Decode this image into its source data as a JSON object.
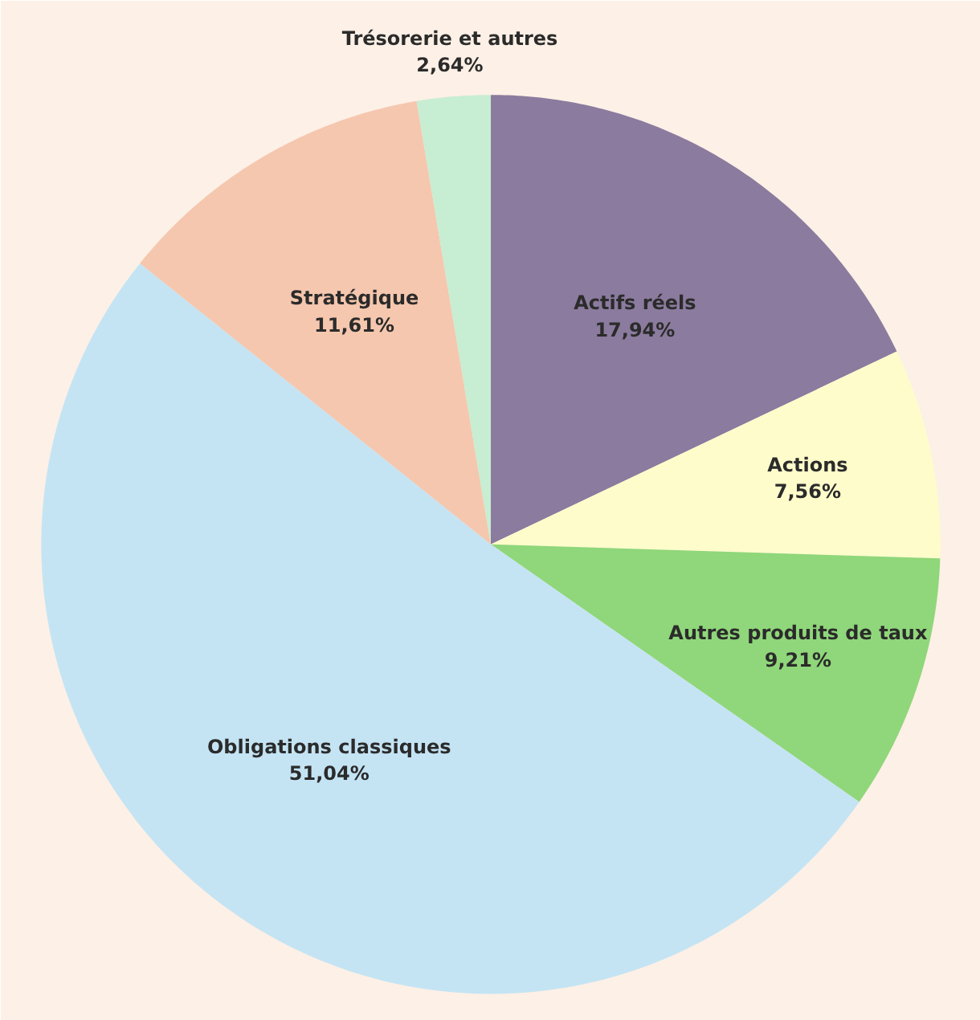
{
  "chart_data": {
    "type": "pie",
    "categories": [
      "Actifs réels",
      "Actions",
      "Autres produits de taux",
      "Obligations classiques",
      "Stratégique",
      "Trésorerie et autres"
    ],
    "values": [
      17.94,
      7.56,
      9.21,
      51.04,
      11.61,
      2.64
    ],
    "value_labels": [
      "17,94%",
      "7,56%",
      "9,21%",
      "51,04%",
      "11,61%",
      "2,64%"
    ],
    "colors": [
      "#8b7b9e",
      "#fffccb",
      "#8fd77a",
      "#c4e4f4",
      "#f5c7ae",
      "#c7edd2"
    ]
  }
}
